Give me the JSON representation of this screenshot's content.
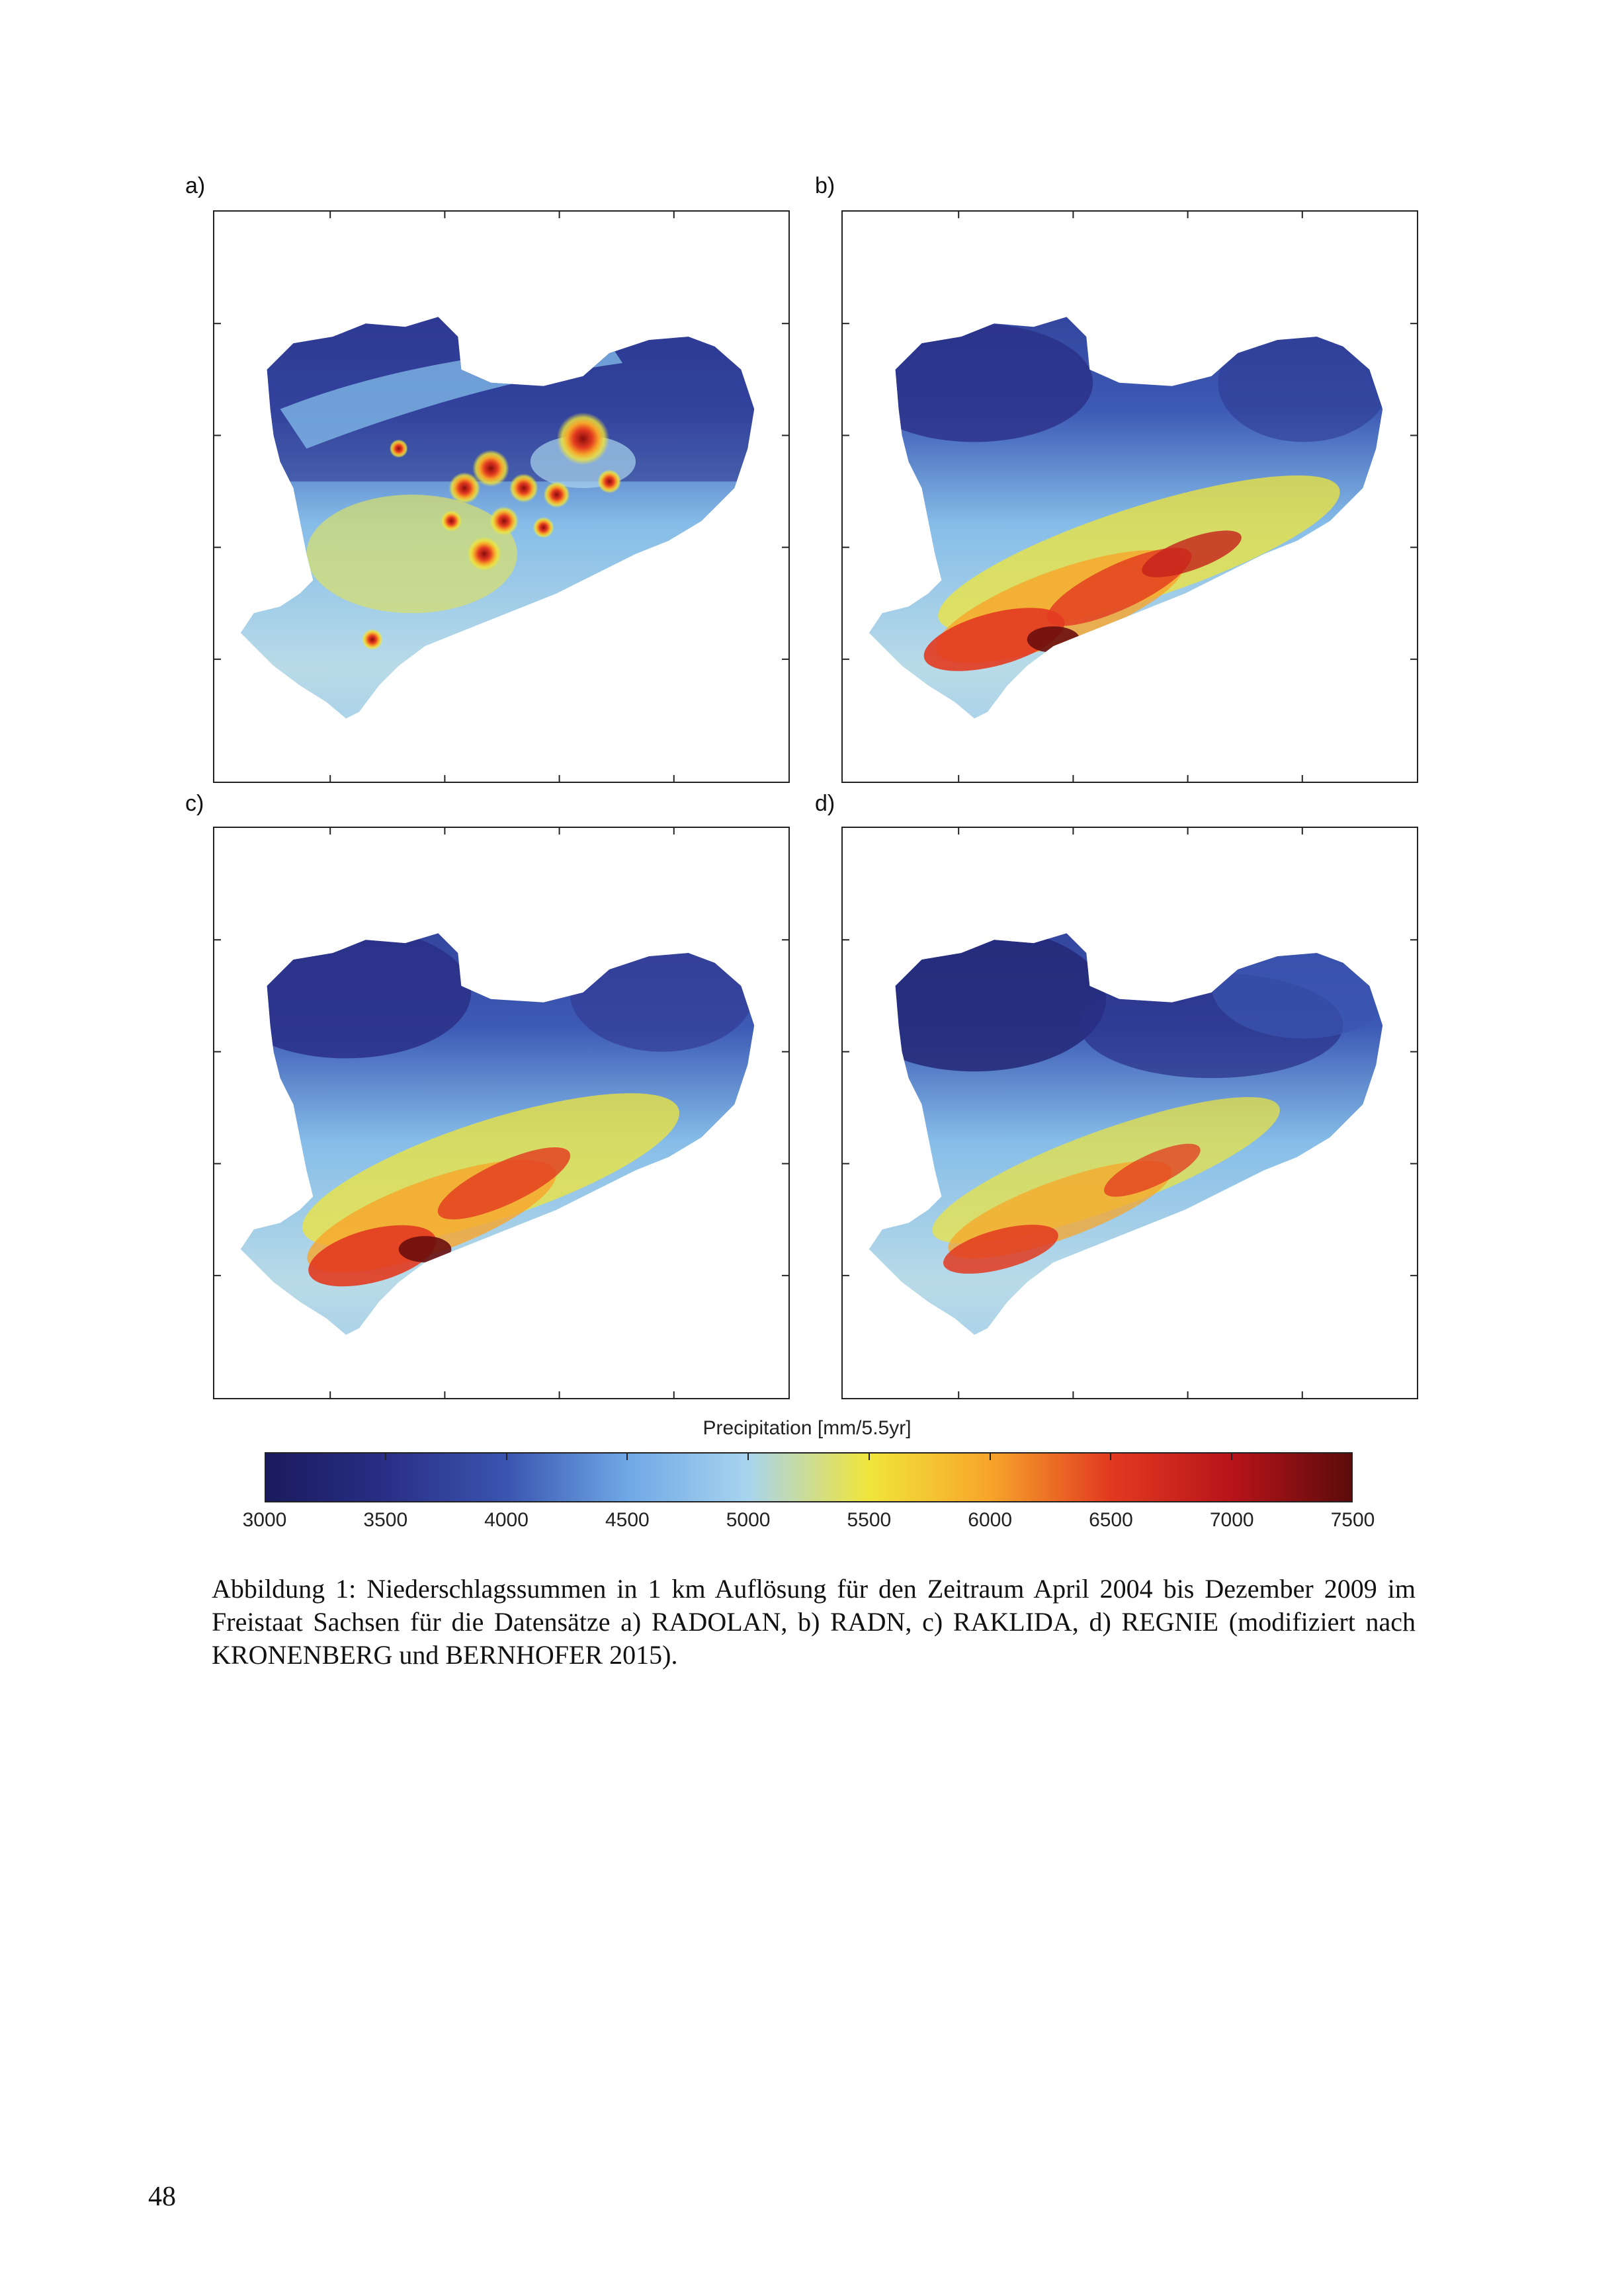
{
  "panels": [
    {
      "label": "a)",
      "dataset": "RADOLAN"
    },
    {
      "label": "b)",
      "dataset": "RADN"
    },
    {
      "label": "c)",
      "dataset": "RAKLIDA"
    },
    {
      "label": "d)",
      "dataset": "REGNIE"
    }
  ],
  "colorbar": {
    "title": "Precipitation [mm/5.5yr]",
    "ticks": [
      "3000",
      "3500",
      "4000",
      "4500",
      "5000",
      "5500",
      "6000",
      "6500",
      "7000",
      "7500"
    ],
    "colormap": "jet",
    "colors": [
      "#1a1a5e",
      "#2a2f86",
      "#3a55b0",
      "#6fa8e6",
      "#a8d4ee",
      "#f0e53a",
      "#f7a52a",
      "#e23a20",
      "#b8141a",
      "#5c0b0b"
    ]
  },
  "caption": "Abbildung 1: Niederschlagssummen in 1 km Auflösung für den Zeitraum April 2004 bis Dezember 2009 im Freistaat Sachsen für die Datensätze a) RADOLAN, b) RADN, c) RAKLIDA, d) REGNIE (modifiziert nach KRONENBERG und BERNHOFER 2015).",
  "page_number": "48"
}
